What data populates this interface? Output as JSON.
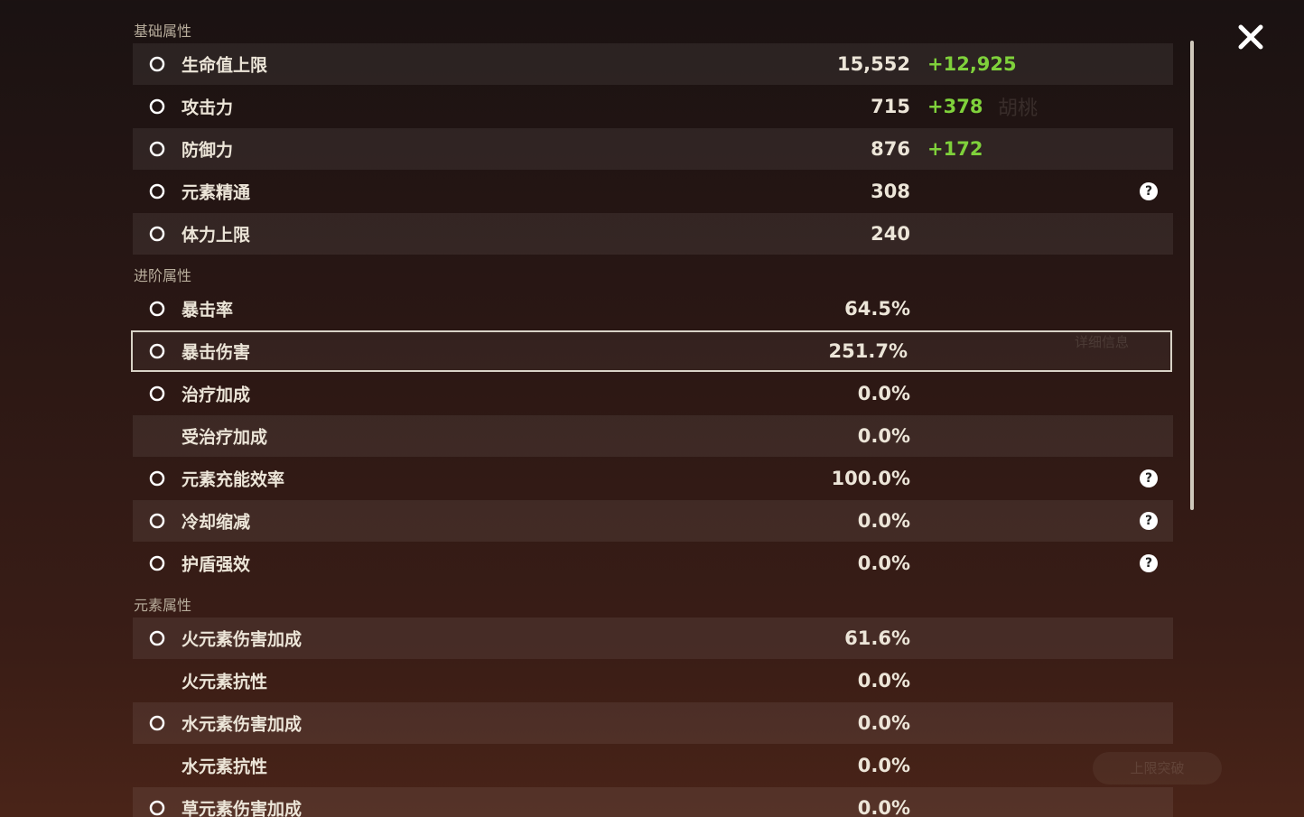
{
  "background": {
    "name": "胡桃",
    "details_button": "详细信息",
    "ascend_button": "上限突破"
  },
  "sections": [
    {
      "title": "基础属性",
      "rows": [
        {
          "label": "生命值上限",
          "value": "15,552",
          "bonus": "+12,925"
        },
        {
          "label": "攻击力",
          "value": "715",
          "bonus": "+378"
        },
        {
          "label": "防御力",
          "value": "876",
          "bonus": "+172"
        },
        {
          "label": "元素精通",
          "value": "308",
          "help": true
        },
        {
          "label": "体力上限",
          "value": "240"
        }
      ]
    },
    {
      "title": "进阶属性",
      "rows": [
        {
          "label": "暴击率",
          "value": "64.5%"
        },
        {
          "label": "暴击伤害",
          "value": "251.7%",
          "selected": true
        },
        {
          "label": "治疗加成",
          "value": "0.0%"
        },
        {
          "label": "受治疗加成",
          "value": "0.0%"
        },
        {
          "label": "元素充能效率",
          "value": "100.0%",
          "help": true
        },
        {
          "label": "冷却缩减",
          "value": "0.0%",
          "help": true
        },
        {
          "label": "护盾强效",
          "value": "0.0%",
          "help": true
        }
      ]
    },
    {
      "title": "元素属性",
      "rows": [
        {
          "label": "火元素伤害加成",
          "value": "61.6%"
        },
        {
          "label": "火元素抗性",
          "value": "0.0%"
        },
        {
          "label": "水元素伤害加成",
          "value": "0.0%"
        },
        {
          "label": "水元素抗性",
          "value": "0.0%"
        },
        {
          "label": "草元素伤害加成",
          "value": "0.0%"
        }
      ]
    }
  ]
}
